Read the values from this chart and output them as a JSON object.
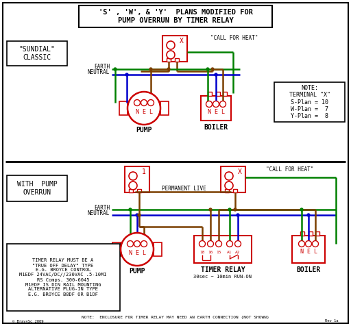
{
  "title_line1": "'S' , 'W', & 'Y'  PLANS MODIFIED FOR",
  "title_line2": "PUMP OVERRUN BY TIMER RELAY",
  "bg_color": "#ffffff",
  "border_color": "#000000",
  "red_color": "#cc0000",
  "green_color": "#008000",
  "blue_color": "#0000cc",
  "brown_color": "#7B3F00",
  "sundial_label": "\"SUNDIAL\"\nCLASSIC",
  "with_pump_label": "WITH  PUMP\nOVERRUN",
  "note_text": "NOTE:\nTERMINAL \"X\"\nS-Plan = 10\nW-Plan =  7\nY-Plan =  8",
  "timer_note_text": "TIMER RELAY MUST BE A\n\"TRUE OFF DELAY\" TYPE\nE.G. BROYCE CONTROL\nM1EDF 24VAC/DC//230VAC .5-10MI\nRS Comps. 300-6045\nM1EDF IS DIN RAIL MOUNTING\nALTERNATIVE PLUG-IN TYPE\nE.G. BROYCE B8DF OR B1DF",
  "bottom_note": "NOTE:  ENCLOSURE FOR TIMER RELAY MAY NEED AN EARTH CONNECTION (NOT SHOWN)",
  "earth_label": "EARTH",
  "neutral_label": "NEUTRAL",
  "perm_live_label": "PERMANENT LIVE",
  "call_heat_label1": "\"CALL FOR HEAT\"",
  "call_heat_label2": "\"CALL FOR HEAT\"",
  "pump_label": "PUMP",
  "boiler_label": "BOILER",
  "timer_relay_label": "TIMER RELAY",
  "timer_relay_sub": "30sec ~ 10min RUN-ON",
  "copyright": "© BravySc 2009",
  "rev": "Rev 1a"
}
